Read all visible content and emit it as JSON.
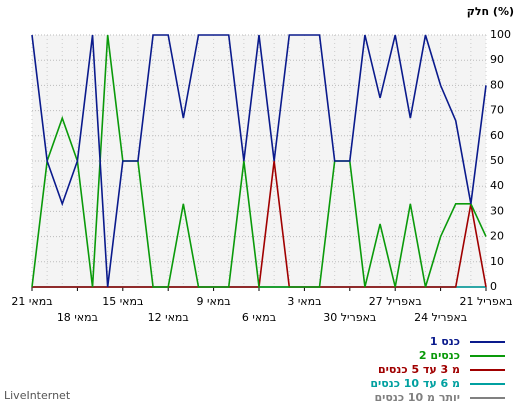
{
  "chart_data": {
    "type": "line",
    "ylabel": "חלק (%)",
    "categories": [
      "21 באפריל",
      null,
      null,
      "24 באפריל",
      null,
      null,
      "27 באפריל",
      null,
      null,
      "30 באפריל",
      null,
      null,
      "3 במאי",
      null,
      null,
      "6 במאי",
      null,
      null,
      "9 במאי",
      null,
      null,
      "12 במאי",
      null,
      null,
      "15 במאי",
      null,
      null,
      "18 במאי",
      null,
      null,
      "21 במאי"
    ],
    "series": [
      {
        "name": "כנס 1",
        "color": "#0a1a8c",
        "values": [
          80,
          33,
          66,
          80,
          100,
          67,
          100,
          75,
          100,
          50,
          50,
          100,
          100,
          100,
          50,
          100,
          50,
          100,
          100,
          100,
          67,
          100,
          100,
          50,
          50,
          0,
          100,
          50,
          33,
          50,
          100
        ]
      },
      {
        "name": "2 כנסים",
        "color": "#0a9a0a",
        "values": [
          20,
          33,
          33,
          20,
          0,
          33,
          0,
          25,
          0,
          50,
          50,
          0,
          0,
          0,
          0,
          0,
          50,
          0,
          0,
          0,
          33,
          0,
          0,
          50,
          50,
          100,
          0,
          50,
          67,
          50,
          0
        ]
      },
      {
        "name": "מ 3 עד 5 כנסים",
        "color": "#a00000",
        "values": [
          0,
          33,
          0,
          0,
          0,
          0,
          0,
          0,
          0,
          0,
          0,
          0,
          0,
          0,
          50,
          0,
          0,
          0,
          0,
          0,
          0,
          0,
          0,
          0,
          0,
          0,
          0,
          0,
          0,
          0,
          0
        ]
      },
      {
        "name": "מ 6 עד 10 כנסים",
        "color": "#00a0a0",
        "values": [
          0,
          0,
          0,
          0,
          0,
          0,
          0,
          0,
          0,
          0,
          0,
          0,
          0,
          0,
          0,
          0,
          0,
          0,
          0,
          0,
          0,
          0,
          0,
          0,
          0,
          0,
          0,
          0,
          0,
          0,
          0
        ]
      },
      {
        "name": "יותר מ 10 כנסים",
        "color": "#808080",
        "values": [
          0,
          0,
          0,
          0,
          0,
          0,
          0,
          0,
          0,
          0,
          0,
          0,
          0,
          0,
          0,
          0,
          0,
          0,
          0,
          0,
          0,
          0,
          0,
          0,
          0,
          0,
          0,
          0,
          0,
          0,
          0
        ]
      }
    ],
    "ylim": [
      0,
      100
    ],
    "yticks": [
      0,
      10,
      20,
      30,
      40,
      50,
      60,
      70,
      80,
      90,
      100
    ],
    "grid": true,
    "legend": "bottom-right",
    "brand": "LiveInternet"
  }
}
